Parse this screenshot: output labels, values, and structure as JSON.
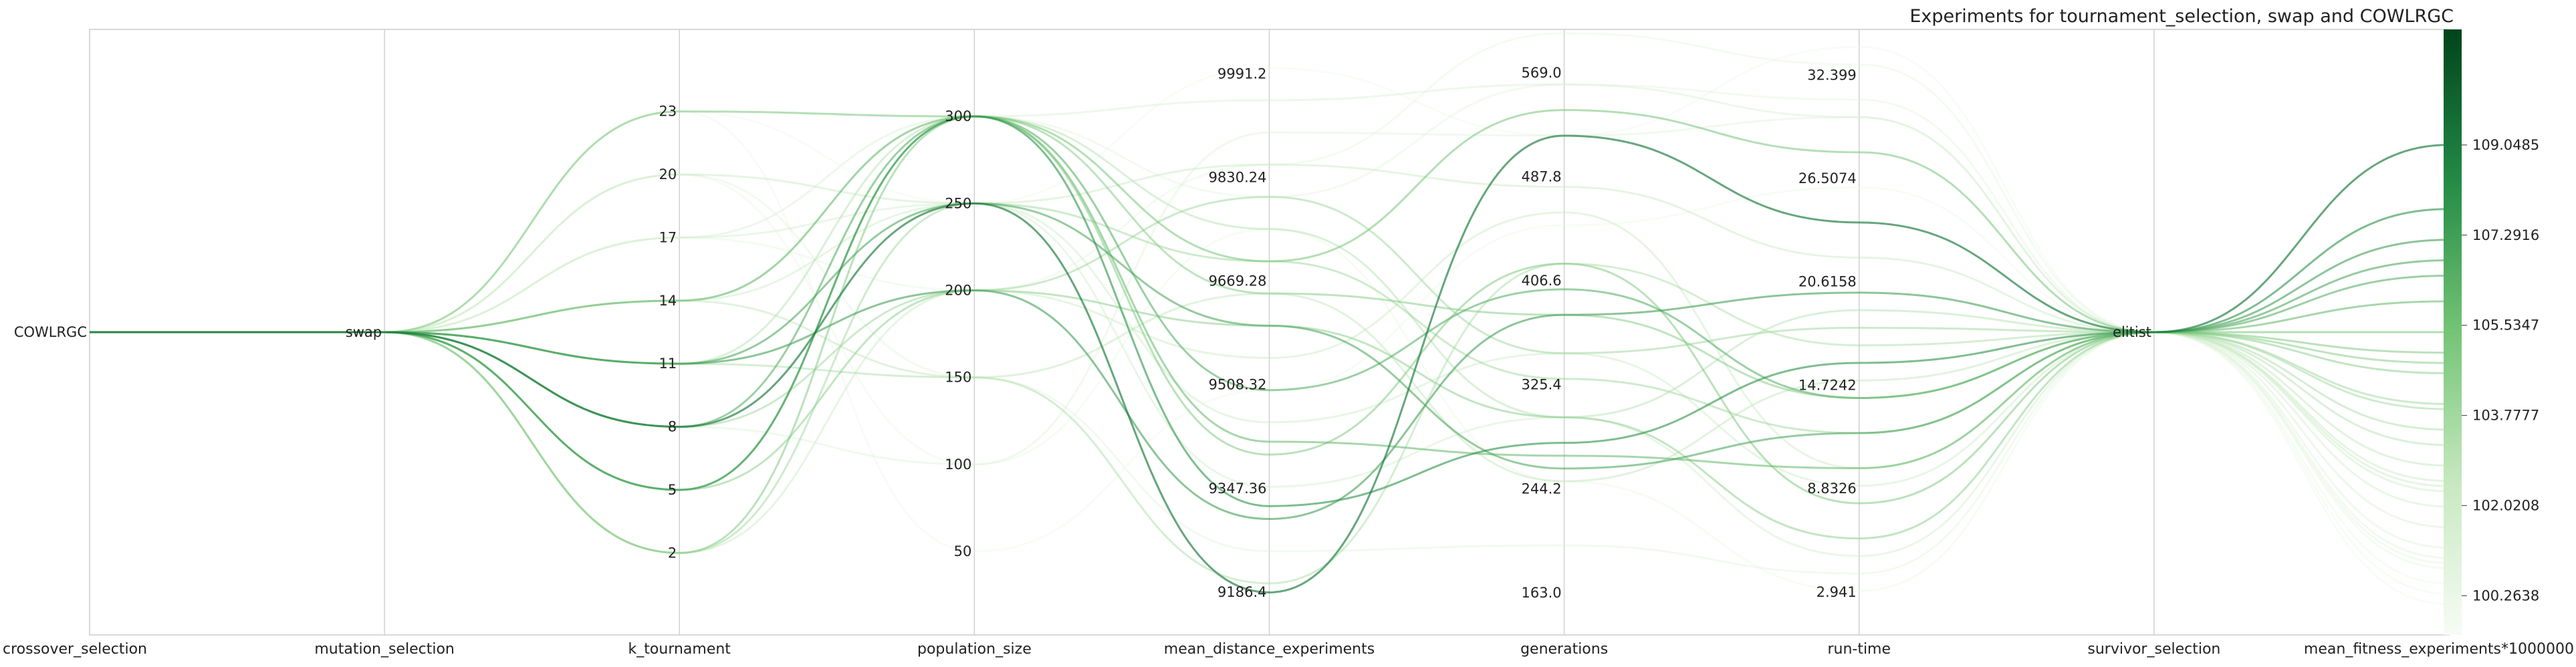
{
  "chart_data": {
    "type": "parallel_coordinates",
    "title": "Experiments for tournament_selection, swap and COWLRGC",
    "axes": [
      {
        "name": "crossover_selection",
        "kind": "categorical",
        "categories": [
          "COWLRGC"
        ],
        "ticks": [
          "COWLRGC"
        ]
      },
      {
        "name": "mutation_selection",
        "kind": "categorical",
        "categories": [
          "swap"
        ],
        "ticks": [
          "swap"
        ]
      },
      {
        "name": "k_tournament",
        "kind": "numeric",
        "range": [
          -1.9,
          26.9
        ],
        "ticks": [
          "23",
          "20",
          "17",
          "14",
          "11",
          "8",
          "5",
          "2"
        ]
      },
      {
        "name": "population_size",
        "kind": "numeric",
        "range": [
          2,
          350
        ],
        "ticks": [
          "300",
          "250",
          "200",
          "150",
          "100",
          "50"
        ]
      },
      {
        "name": "mean_distance_experiments",
        "kind": "numeric",
        "range": [
          9120,
          10060
        ],
        "ticks": [
          "9991.2",
          "9830.24",
          "9669.28",
          "9508.32",
          "9347.36",
          "9186.4"
        ]
      },
      {
        "name": "generations",
        "kind": "numeric",
        "range": [
          130,
          603
        ],
        "ticks": [
          "569.0",
          "487.8",
          "406.6",
          "325.4",
          "244.2",
          "163.0"
        ]
      },
      {
        "name": "run-time",
        "kind": "numeric",
        "range": [
          0.5,
          35
        ],
        "ticks": [
          "32.399",
          "26.5074",
          "20.6158",
          "14.7242",
          "8.8326",
          "2.941"
        ]
      },
      {
        "name": "survivor_selection",
        "kind": "categorical",
        "categories": [
          "elitist"
        ],
        "ticks": [
          "elitist"
        ]
      },
      {
        "name": "mean_fitness_experiments*1000000",
        "kind": "numeric",
        "range": [
          99.5,
          111.3
        ],
        "ticks": [
          "109.0485",
          "107.2916",
          "105.5347",
          "103.7777",
          "102.0208",
          "100.2638"
        ]
      }
    ],
    "colorbar": {
      "colormap": "Greens",
      "color_low": "#f7fcf5",
      "color_mid": "#74c476",
      "color_high": "#00441b",
      "range": [
        99.5,
        111.3
      ]
    },
    "grid": false,
    "lines": [
      {
        "k_tournament": 2,
        "population_size": 250,
        "mean_distance_experiments": 9700,
        "generations": 330,
        "run-time": 12.0,
        "mean_fitness": 103.9
      },
      {
        "k_tournament": 5,
        "population_size": 300,
        "mean_distance_experiments": 9320,
        "generations": 280,
        "run-time": 16.0,
        "mean_fitness": 107.8
      },
      {
        "k_tournament": 8,
        "population_size": 250,
        "mean_distance_experiments": 9186,
        "generations": 520,
        "run-time": 24.0,
        "mean_fitness": 109.05
      },
      {
        "k_tournament": 8,
        "population_size": 300,
        "mean_distance_experiments": 9500,
        "generations": 400,
        "run-time": 14.0,
        "mean_fitness": 106.5
      },
      {
        "k_tournament": 11,
        "population_size": 200,
        "mean_distance_experiments": 9300,
        "generations": 380,
        "run-time": 20.0,
        "mean_fitness": 107.2
      },
      {
        "k_tournament": 14,
        "population_size": 300,
        "mean_distance_experiments": 9420,
        "generations": 270,
        "run-time": 10.0,
        "mean_fitness": 106.0
      },
      {
        "k_tournament": 23,
        "population_size": 300,
        "mean_distance_experiments": 9700,
        "generations": 540,
        "run-time": 28.0,
        "mean_fitness": 105.4
      },
      {
        "k_tournament": 5,
        "population_size": 200,
        "mean_distance_experiments": 9600,
        "generations": 300,
        "run-time": 6.0,
        "mean_fitness": 104.6
      },
      {
        "k_tournament": 8,
        "population_size": 200,
        "mean_distance_experiments": 9800,
        "generations": 350,
        "run-time": 18.0,
        "mean_fitness": 104.0
      },
      {
        "k_tournament": 2,
        "population_size": 300,
        "mean_distance_experiments": 9400,
        "generations": 420,
        "run-time": 8.0,
        "mean_fitness": 105.0
      },
      {
        "k_tournament": 11,
        "population_size": 250,
        "mean_distance_experiments": 9600,
        "generations": 260,
        "run-time": 12.0,
        "mean_fitness": 106.8
      },
      {
        "k_tournament": 20,
        "population_size": 250,
        "mean_distance_experiments": 9850,
        "generations": 480,
        "run-time": 22.0,
        "mean_fitness": 102.5
      },
      {
        "k_tournament": 17,
        "population_size": 300,
        "mean_distance_experiments": 9950,
        "generations": 560,
        "run-time": 30.0,
        "mean_fitness": 101.6
      },
      {
        "k_tournament": 14,
        "population_size": 150,
        "mean_distance_experiments": 9650,
        "generations": 250,
        "run-time": 15.0,
        "mean_fitness": 102.8
      },
      {
        "k_tournament": 20,
        "population_size": 150,
        "mean_distance_experiments": 9250,
        "generations": 200,
        "run-time": 4.0,
        "mean_fitness": 101.0
      },
      {
        "k_tournament": 23,
        "population_size": 50,
        "mean_distance_experiments": 9500,
        "generations": 450,
        "run-time": 26.0,
        "mean_fitness": 100.3
      },
      {
        "k_tournament": 11,
        "population_size": 300,
        "mean_distance_experiments": 9750,
        "generations": 300,
        "run-time": 19.0,
        "mean_fitness": 103.2
      },
      {
        "k_tournament": 17,
        "population_size": 200,
        "mean_distance_experiments": 9850,
        "generations": 600,
        "run-time": 33.0,
        "mean_fitness": 100.8
      },
      {
        "k_tournament": 8,
        "population_size": 100,
        "mean_distance_experiments": 9900,
        "generations": 520,
        "run-time": 30.0,
        "mean_fitness": 101.2
      },
      {
        "k_tournament": 14,
        "population_size": 250,
        "mean_distance_experiments": 9450,
        "generations": 350,
        "run-time": 9.0,
        "mean_fitness": 102.3
      },
      {
        "k_tournament": 5,
        "population_size": 300,
        "mean_distance_experiments": 9650,
        "generations": 380,
        "run-time": 14.0,
        "mean_fitness": 104.8
      },
      {
        "k_tournament": 17,
        "population_size": 250,
        "mean_distance_experiments": 9350,
        "generations": 300,
        "run-time": 5.0,
        "mean_fitness": 102.0
      },
      {
        "k_tournament": 23,
        "population_size": 250,
        "mean_distance_experiments": 10000,
        "generations": 520,
        "run-time": 34.0,
        "mean_fitness": 100.1
      },
      {
        "k_tournament": 20,
        "population_size": 100,
        "mean_distance_experiments": 9750,
        "generations": 250,
        "run-time": 3.0,
        "mean_fitness": 100.5
      },
      {
        "k_tournament": 2,
        "population_size": 200,
        "mean_distance_experiments": 9550,
        "generations": 460,
        "run-time": 10.0,
        "mean_fitness": 102.4
      },
      {
        "k_tournament": 14,
        "population_size": 300,
        "mean_distance_experiments": 9800,
        "generations": 560,
        "run-time": 31.0,
        "mean_fitness": 100.9
      },
      {
        "k_tournament": 11,
        "population_size": 150,
        "mean_distance_experiments": 9200,
        "generations": 420,
        "run-time": 17.0,
        "mean_fitness": 103.5
      }
    ]
  }
}
